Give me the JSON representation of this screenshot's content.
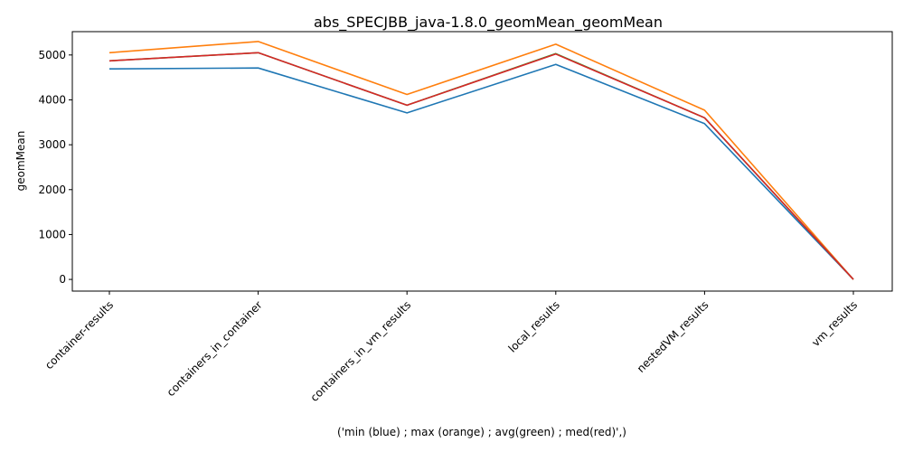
{
  "chart_data": {
    "type": "line",
    "title": "abs_SPECJBB_java-1.8.0_geomMean_geomMean",
    "xlabel": "('min (blue) ; max (orange) ; avg(green) ; med(red)',)",
    "ylabel": "geomMean",
    "categories": [
      "container-results",
      "containers_in_container",
      "containers_in_vm_results",
      "local_results",
      "nestedVM_results",
      "vm_results"
    ],
    "ylim": [
      -260,
      5520
    ],
    "yticks": [
      0,
      1000,
      2000,
      3000,
      4000,
      5000
    ],
    "grid": false,
    "series": [
      {
        "color": "#1f77b4",
        "values": [
          4690,
          4710,
          3710,
          4790,
          3470,
          0
        ]
      },
      {
        "color": "#ff7f0e",
        "values": [
          5050,
          5300,
          4120,
          5240,
          3770,
          0
        ]
      },
      {
        "color": "#2ca02c",
        "values": [
          4870,
          5050,
          3880,
          5030,
          3600,
          0
        ]
      },
      {
        "color": "#d62728",
        "values": [
          4870,
          5050,
          3880,
          5020,
          3600,
          0
        ]
      }
    ]
  }
}
